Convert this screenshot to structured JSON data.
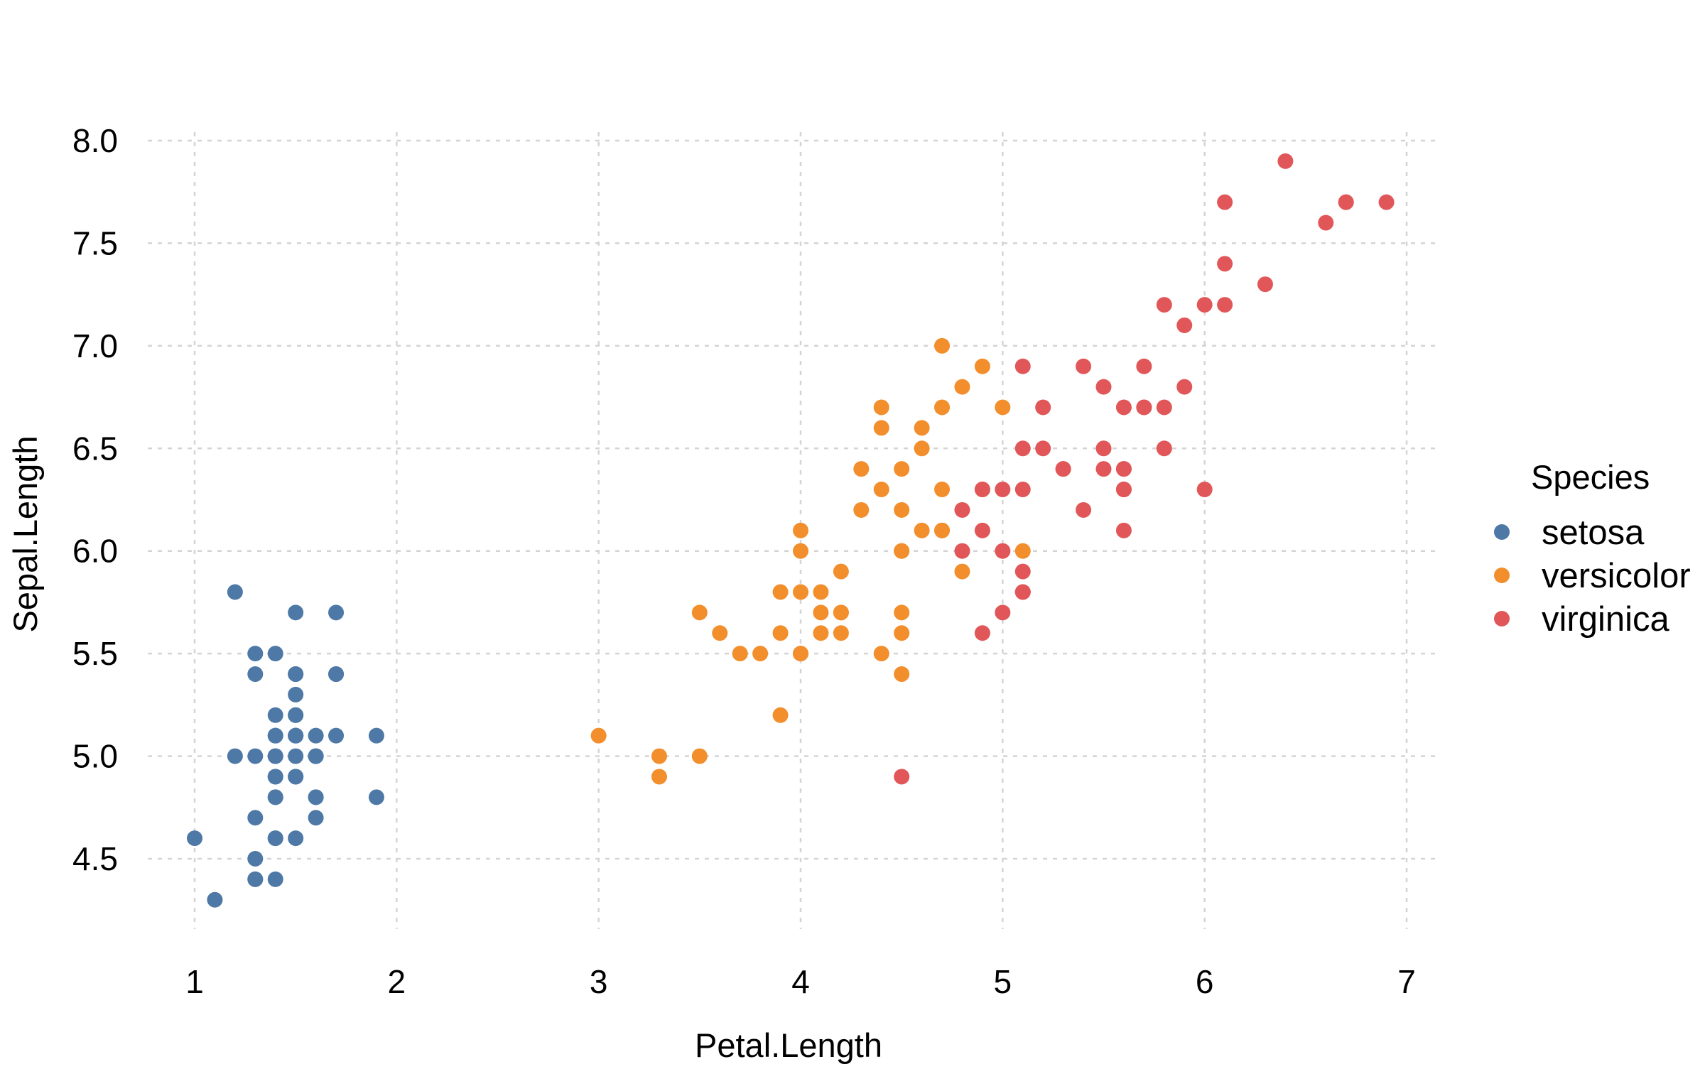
{
  "chart_data": {
    "type": "scatter",
    "title": "",
    "xlabel": "Petal.Length",
    "ylabel": "Sepal.Length",
    "xlim": [
      0.76,
      7.14
    ],
    "ylim": [
      4.18,
      8.04
    ],
    "x_ticks": [
      "1",
      "2",
      "3",
      "4",
      "5",
      "6",
      "7"
    ],
    "y_ticks": [
      "4.5",
      "5.0",
      "5.5",
      "6.0",
      "6.5",
      "7.0",
      "7.5",
      "8.0"
    ],
    "grid": true,
    "legend": {
      "title": "Species",
      "placement": "right"
    },
    "series": [
      {
        "name": "setosa",
        "color": "#4E79A7",
        "points": [
          [
            1.4,
            5.1
          ],
          [
            1.4,
            4.9
          ],
          [
            1.3,
            4.7
          ],
          [
            1.5,
            4.6
          ],
          [
            1.4,
            5.0
          ],
          [
            1.7,
            5.4
          ],
          [
            1.4,
            4.6
          ],
          [
            1.5,
            5.0
          ],
          [
            1.4,
            4.4
          ],
          [
            1.5,
            4.9
          ],
          [
            1.5,
            5.4
          ],
          [
            1.6,
            4.8
          ],
          [
            1.4,
            4.8
          ],
          [
            1.1,
            4.3
          ],
          [
            1.2,
            5.8
          ],
          [
            1.5,
            5.7
          ],
          [
            1.3,
            5.4
          ],
          [
            1.4,
            5.1
          ],
          [
            1.7,
            5.7
          ],
          [
            1.5,
            5.1
          ],
          [
            1.7,
            5.4
          ],
          [
            1.5,
            5.1
          ],
          [
            1.0,
            4.6
          ],
          [
            1.7,
            5.1
          ],
          [
            1.9,
            4.8
          ],
          [
            1.6,
            5.0
          ],
          [
            1.6,
            5.0
          ],
          [
            1.5,
            5.2
          ],
          [
            1.4,
            5.2
          ],
          [
            1.6,
            4.7
          ],
          [
            1.6,
            4.8
          ],
          [
            1.5,
            5.4
          ],
          [
            1.5,
            5.2
          ],
          [
            1.4,
            5.5
          ],
          [
            1.5,
            4.9
          ],
          [
            1.2,
            5.0
          ],
          [
            1.3,
            5.5
          ],
          [
            1.4,
            4.9
          ],
          [
            1.3,
            4.4
          ],
          [
            1.5,
            5.1
          ],
          [
            1.3,
            5.0
          ],
          [
            1.3,
            4.5
          ],
          [
            1.3,
            4.4
          ],
          [
            1.6,
            5.0
          ],
          [
            1.9,
            5.1
          ],
          [
            1.4,
            4.8
          ],
          [
            1.6,
            5.1
          ],
          [
            1.4,
            4.6
          ],
          [
            1.5,
            5.3
          ],
          [
            1.4,
            5.0
          ]
        ]
      },
      {
        "name": "versicolor",
        "color": "#F28E2B",
        "points": [
          [
            4.7,
            7.0
          ],
          [
            4.5,
            6.4
          ],
          [
            4.9,
            6.9
          ],
          [
            4.0,
            5.5
          ],
          [
            4.6,
            6.5
          ],
          [
            4.5,
            5.7
          ],
          [
            4.7,
            6.3
          ],
          [
            3.3,
            4.9
          ],
          [
            4.6,
            6.6
          ],
          [
            3.9,
            5.2
          ],
          [
            3.5,
            5.0
          ],
          [
            4.2,
            5.9
          ],
          [
            4.0,
            6.0
          ],
          [
            4.7,
            6.1
          ],
          [
            3.6,
            5.6
          ],
          [
            4.4,
            6.7
          ],
          [
            4.5,
            5.6
          ],
          [
            4.1,
            5.8
          ],
          [
            4.5,
            6.2
          ],
          [
            3.9,
            5.6
          ],
          [
            4.8,
            5.9
          ],
          [
            4.0,
            6.1
          ],
          [
            4.9,
            6.3
          ],
          [
            4.7,
            6.1
          ],
          [
            4.3,
            6.4
          ],
          [
            4.4,
            6.6
          ],
          [
            4.8,
            6.8
          ],
          [
            5.0,
            6.7
          ],
          [
            4.5,
            6.0
          ],
          [
            3.5,
            5.7
          ],
          [
            3.8,
            5.5
          ],
          [
            3.7,
            5.5
          ],
          [
            3.9,
            5.8
          ],
          [
            5.1,
            6.0
          ],
          [
            4.5,
            5.4
          ],
          [
            4.5,
            6.0
          ],
          [
            4.7,
            6.7
          ],
          [
            4.4,
            6.3
          ],
          [
            4.1,
            5.6
          ],
          [
            4.0,
            5.5
          ],
          [
            4.4,
            5.5
          ],
          [
            4.6,
            6.1
          ],
          [
            4.0,
            5.8
          ],
          [
            3.3,
            5.0
          ],
          [
            4.2,
            5.6
          ],
          [
            4.2,
            5.7
          ],
          [
            4.2,
            5.7
          ],
          [
            4.3,
            6.2
          ],
          [
            3.0,
            5.1
          ],
          [
            4.1,
            5.7
          ]
        ]
      },
      {
        "name": "virginica",
        "color": "#E15759",
        "points": [
          [
            6.0,
            6.3
          ],
          [
            5.1,
            5.8
          ],
          [
            5.9,
            7.1
          ],
          [
            5.6,
            6.3
          ],
          [
            5.8,
            6.5
          ],
          [
            6.6,
            7.6
          ],
          [
            4.5,
            4.9
          ],
          [
            6.3,
            7.3
          ],
          [
            5.8,
            6.7
          ],
          [
            6.1,
            7.2
          ],
          [
            5.1,
            6.5
          ],
          [
            5.3,
            6.4
          ],
          [
            5.5,
            6.8
          ],
          [
            5.0,
            5.7
          ],
          [
            5.1,
            5.8
          ],
          [
            5.3,
            6.4
          ],
          [
            5.5,
            6.5
          ],
          [
            6.7,
            7.7
          ],
          [
            6.9,
            7.7
          ],
          [
            5.0,
            6.0
          ],
          [
            5.7,
            6.9
          ],
          [
            4.9,
            5.6
          ],
          [
            6.7,
            7.7
          ],
          [
            4.9,
            6.3
          ],
          [
            5.7,
            6.7
          ],
          [
            6.0,
            7.2
          ],
          [
            4.8,
            6.2
          ],
          [
            4.9,
            6.1
          ],
          [
            5.6,
            6.4
          ],
          [
            5.8,
            7.2
          ],
          [
            6.1,
            7.4
          ],
          [
            6.4,
            7.9
          ],
          [
            5.6,
            6.4
          ],
          [
            5.1,
            6.3
          ],
          [
            5.6,
            6.1
          ],
          [
            6.1,
            7.7
          ],
          [
            5.6,
            6.3
          ],
          [
            5.5,
            6.4
          ],
          [
            4.8,
            6.0
          ],
          [
            5.4,
            6.9
          ],
          [
            5.6,
            6.7
          ],
          [
            5.1,
            6.9
          ],
          [
            5.1,
            5.8
          ],
          [
            5.9,
            6.8
          ],
          [
            5.7,
            6.7
          ],
          [
            5.2,
            6.7
          ],
          [
            5.0,
            6.3
          ],
          [
            5.2,
            6.5
          ],
          [
            5.4,
            6.2
          ],
          [
            5.1,
            5.9
          ]
        ]
      }
    ]
  }
}
